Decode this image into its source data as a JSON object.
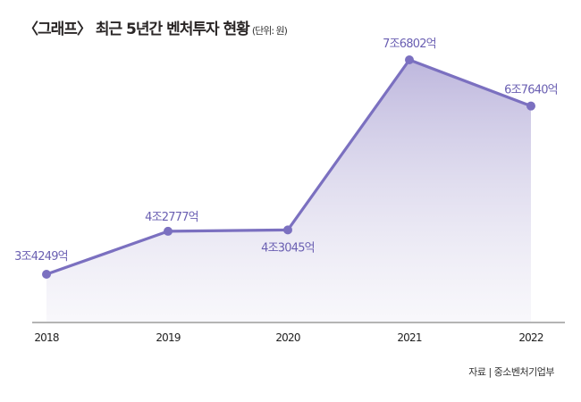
{
  "chart_data": {
    "type": "line",
    "title": "〈그래프〉 최근 5년간 벤처투자 현황",
    "unit": "(단위: 원)",
    "source": "자료 | 중소벤처기업부",
    "categories": [
      "2018",
      "2019",
      "2020",
      "2021",
      "2022"
    ],
    "values": [
      34249,
      42777,
      43045,
      76802,
      67640
    ],
    "value_unit": "억원",
    "data_labels": [
      "3조4249억",
      "4조2777억",
      "4조3045억",
      "7조6802억",
      "6조7640억"
    ],
    "xlabel": "",
    "ylabel": "",
    "grid": false,
    "fill": "area-gradient",
    "colors": {
      "line": "#7b70c0",
      "label": "#6a5fb2",
      "fill": "#bdb6dc"
    }
  }
}
